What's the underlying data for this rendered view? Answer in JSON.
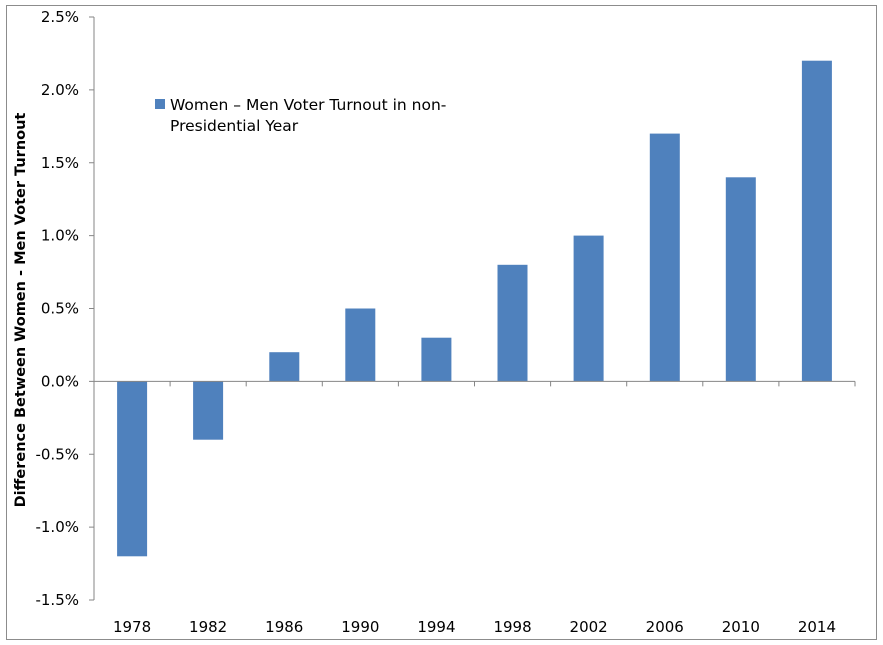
{
  "chart_data": {
    "type": "bar",
    "title": "",
    "xlabel": "",
    "ylabel": "Difference Between Women - Men Voter Turnout",
    "categories": [
      "1978",
      "1982",
      "1986",
      "1990",
      "1994",
      "1998",
      "2002",
      "2006",
      "2010",
      "2014"
    ],
    "series": [
      {
        "name": "Women – Men Voter Turnout in non-Presidential Year",
        "legend_lines": [
          "Women – Men Voter Turnout in non-",
          "Presidential Year"
        ],
        "color": "#4f81bd",
        "values": [
          -1.2,
          -0.4,
          0.2,
          0.5,
          0.3,
          0.8,
          1.0,
          1.7,
          1.4,
          2.2
        ]
      }
    ],
    "ylim": [
      -1.5,
      2.5
    ],
    "yticks": [
      2.5,
      2.0,
      1.5,
      1.0,
      0.5,
      0.0,
      -0.5,
      -1.0,
      -1.5
    ],
    "ytick_labels": [
      "2.5%",
      "2.0%",
      "1.5%",
      "1.0%",
      "0.5%",
      "0.0%",
      "-0.5%",
      "-1.0%",
      "-1.5%"
    ],
    "grid": false,
    "legend_position": "top-left"
  }
}
